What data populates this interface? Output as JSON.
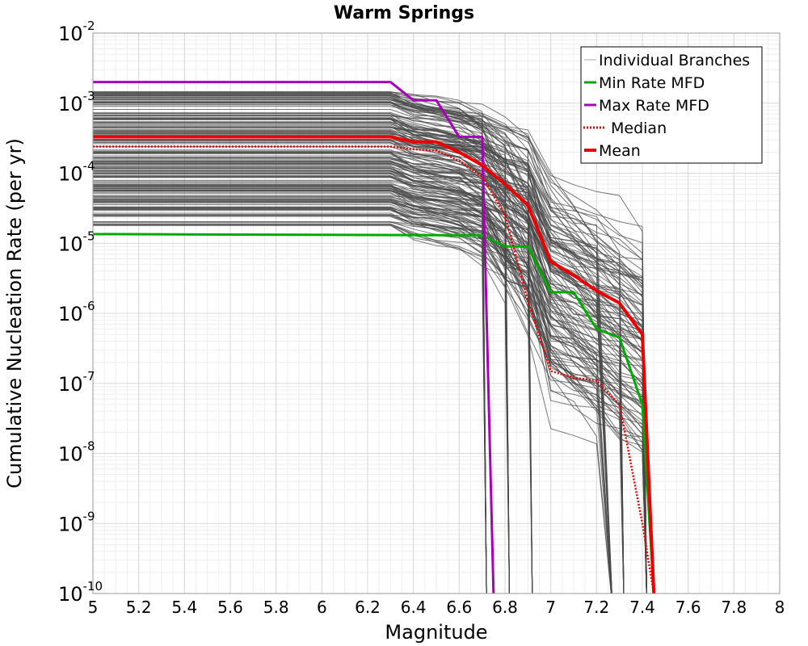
{
  "chart_data": {
    "type": "line",
    "title": "Warm Springs",
    "xlabel": "Magnitude",
    "ylabel": "Cumulative Nucleation Rate (per yr)",
    "xlim": [
      5,
      8
    ],
    "ylim": [
      1e-10,
      0.01
    ],
    "yscale": "log",
    "grid": true,
    "legend_position": "top-right",
    "x_ticks": [
      "5",
      "5.2",
      "5.4",
      "5.6",
      "5.8",
      "6",
      "6.2",
      "6.4",
      "6.6",
      "6.8",
      "7",
      "7.2",
      "7.4",
      "7.6",
      "7.8",
      "8"
    ],
    "y_ticks": [
      {
        "base": "10",
        "exp": "-2",
        "value": 0.01
      },
      {
        "base": "10",
        "exp": "-3",
        "value": 0.001
      },
      {
        "base": "10",
        "exp": "-4",
        "value": 0.0001
      },
      {
        "base": "10",
        "exp": "-5",
        "value": 1e-05
      },
      {
        "base": "10",
        "exp": "-6",
        "value": 1e-06
      },
      {
        "base": "10",
        "exp": "-7",
        "value": 1e-07
      },
      {
        "base": "10",
        "exp": "-8",
        "value": 1e-08
      },
      {
        "base": "10",
        "exp": "-9",
        "value": 1e-09
      },
      {
        "base": "10",
        "exp": "-10",
        "value": 1e-10
      }
    ],
    "series": [
      {
        "name": "Individual Branches",
        "color": "#555555",
        "style": "thin",
        "note_count": 200
      },
      {
        "name": "Min Rate MFD",
        "color": "#00aa00",
        "style": "solid",
        "x": [
          5.0,
          6.7,
          6.8,
          6.9,
          7.0,
          7.1,
          7.2,
          7.3,
          7.4,
          7.45
        ],
        "y": [
          1.35e-05,
          1.3e-05,
          9e-06,
          9e-06,
          2e-06,
          2e-06,
          6e-07,
          4.5e-07,
          5e-08,
          1e-10
        ]
      },
      {
        "name": "Max Rate MFD",
        "color": "#aa00bb",
        "style": "solid",
        "x": [
          5.0,
          6.3,
          6.4,
          6.5,
          6.6,
          6.7,
          6.75
        ],
        "y": [
          0.002,
          0.002,
          0.0011,
          0.0011,
          0.00033,
          0.00033,
          1e-10
        ]
      },
      {
        "name": "Median",
        "color": "#ee0000",
        "style": "dotted",
        "x": [
          5.0,
          6.3,
          6.4,
          6.5,
          6.6,
          6.7,
          6.8,
          6.9,
          7.0,
          7.1,
          7.2,
          7.3,
          7.4,
          7.45
        ],
        "y": [
          0.00024,
          0.00024,
          0.00022,
          0.00021,
          0.00015,
          9e-05,
          2.5e-05,
          1.5e-06,
          1.5e-07,
          1.2e-07,
          1.1e-07,
          5e-08,
          1e-09,
          1e-10
        ]
      },
      {
        "name": "Mean",
        "color": "#ee0000",
        "style": "thick",
        "x": [
          5.0,
          6.3,
          6.4,
          6.5,
          6.6,
          6.7,
          6.8,
          6.9,
          7.0,
          7.1,
          7.2,
          7.3,
          7.4,
          7.45
        ],
        "y": [
          0.00033,
          0.00033,
          0.00028,
          0.00028,
          0.0002,
          0.00013,
          7e-05,
          3.5e-05,
          5.5e-06,
          3.5e-06,
          2.1e-06,
          1.4e-06,
          5e-07,
          1e-10
        ]
      }
    ]
  }
}
